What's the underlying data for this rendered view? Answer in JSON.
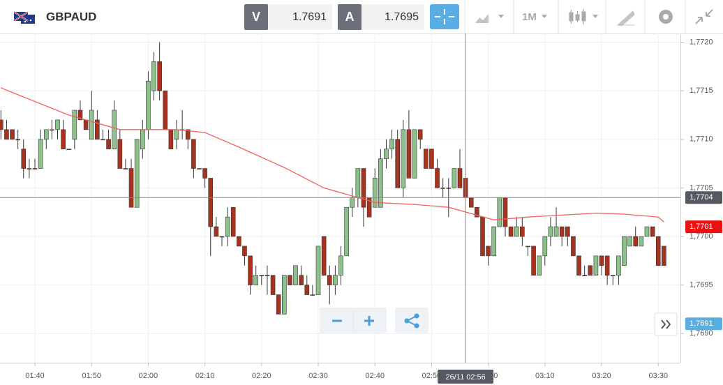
{
  "toolbar": {
    "symbol": "GBPAUD",
    "sell_label": "V",
    "sell_price": "1.7691",
    "buy_label": "A",
    "buy_price": "1.7695",
    "timeframe": "1M"
  },
  "chart_data": {
    "type": "candlestick",
    "x": [
      "01:34",
      "01:35",
      "01:36",
      "01:37",
      "01:38",
      "01:39",
      "01:40",
      "01:41",
      "01:42",
      "01:43",
      "01:44",
      "01:45",
      "01:46",
      "01:47",
      "01:48",
      "01:49",
      "01:50",
      "01:51",
      "01:52",
      "01:53",
      "01:54",
      "01:55",
      "01:56",
      "01:57",
      "01:58",
      "01:59",
      "02:00",
      "02:01",
      "02:02",
      "02:03",
      "02:04",
      "02:05",
      "02:06",
      "02:07",
      "02:08",
      "02:09",
      "02:10",
      "02:11",
      "02:12",
      "02:13",
      "02:14",
      "02:15",
      "02:16",
      "02:17",
      "02:18",
      "02:19",
      "02:20",
      "02:21",
      "02:22",
      "02:23",
      "02:24",
      "02:25",
      "02:26",
      "02:27",
      "02:28",
      "02:29",
      "02:30",
      "02:31",
      "02:32",
      "02:33",
      "02:34",
      "02:35",
      "02:36",
      "02:37",
      "02:38",
      "02:39",
      "02:40",
      "02:41",
      "02:42",
      "02:43",
      "02:44",
      "02:45",
      "02:46",
      "02:47",
      "02:48",
      "02:49",
      "02:50",
      "02:51",
      "02:52",
      "02:53",
      "02:54",
      "02:55",
      "02:56",
      "02:57",
      "02:58",
      "02:59",
      "03:00",
      "03:01",
      "03:02",
      "03:03",
      "03:04",
      "03:05",
      "03:06",
      "03:07",
      "03:08",
      "03:09",
      "03:10",
      "03:11",
      "03:12",
      "03:13",
      "03:14",
      "03:15",
      "03:16",
      "03:17",
      "03:18",
      "03:19",
      "03:20",
      "03:21",
      "03:22",
      "03:23",
      "03:24",
      "03:25",
      "03:26",
      "03:27",
      "03:28",
      "03:29",
      "03:30",
      "03:31"
    ],
    "ohlc": [
      [
        1.7712,
        1.7713,
        1.771,
        1.7711
      ],
      [
        1.7711,
        1.7712,
        1.771,
        1.771
      ],
      [
        1.7711,
        1.7711,
        1.771,
        1.771
      ],
      [
        1.771,
        1.7711,
        1.7709,
        1.771
      ],
      [
        1.7709,
        1.771,
        1.7706,
        1.7707
      ],
      [
        1.7707,
        1.7708,
        1.7706,
        1.7707
      ],
      [
        1.7707,
        1.7708,
        1.7707,
        1.7707
      ],
      [
        1.7707,
        1.7711,
        1.7707,
        1.771
      ],
      [
        1.771,
        1.7711,
        1.7709,
        1.7711
      ],
      [
        1.7711,
        1.7712,
        1.771,
        1.7711
      ],
      [
        1.7711,
        1.7712,
        1.771,
        1.7712
      ],
      [
        1.7711,
        1.7712,
        1.7709,
        1.7709
      ],
      [
        1.7709,
        1.7709,
        1.7709,
        1.7709
      ],
      [
        1.771,
        1.7713,
        1.7709,
        1.7713
      ],
      [
        1.7713,
        1.7714,
        1.7712,
        1.7712
      ],
      [
        1.7712,
        1.7712,
        1.7711,
        1.7711
      ],
      [
        1.771,
        1.7715,
        1.771,
        1.7713
      ],
      [
        1.7712,
        1.7713,
        1.771,
        1.771
      ],
      [
        1.771,
        1.7711,
        1.771,
        1.771
      ],
      [
        1.771,
        1.7711,
        1.7709,
        1.7709
      ],
      [
        1.7709,
        1.7714,
        1.7709,
        1.7713
      ],
      [
        1.771,
        1.7711,
        1.7707,
        1.7707
      ],
      [
        1.7707,
        1.7708,
        1.7707,
        1.7707
      ],
      [
        1.7707,
        1.7708,
        1.7703,
        1.7703
      ],
      [
        1.7703,
        1.771,
        1.7703,
        1.771
      ],
      [
        1.7709,
        1.7712,
        1.7708,
        1.7711
      ],
      [
        1.7711,
        1.7717,
        1.771,
        1.7716
      ],
      [
        1.7715,
        1.7719,
        1.7714,
        1.7718
      ],
      [
        1.7718,
        1.772,
        1.7714,
        1.7715
      ],
      [
        1.7715,
        1.7715,
        1.7711,
        1.7711
      ],
      [
        1.7711,
        1.7711,
        1.7709,
        1.7709
      ],
      [
        1.771,
        1.7712,
        1.7709,
        1.7711
      ],
      [
        1.7711,
        1.7713,
        1.771,
        1.7711
      ],
      [
        1.7711,
        1.7711,
        1.7709,
        1.771
      ],
      [
        1.771,
        1.771,
        1.7706,
        1.7707
      ],
      [
        1.7707,
        1.7707,
        1.7707,
        1.7707
      ],
      [
        1.7707,
        1.7707,
        1.7705,
        1.7706
      ],
      [
        1.7706,
        1.7706,
        1.7698,
        1.7701
      ],
      [
        1.7701,
        1.7702,
        1.77,
        1.77
      ],
      [
        1.77,
        1.77,
        1.7699,
        1.77
      ],
      [
        1.77,
        1.7703,
        1.7699,
        1.7702
      ],
      [
        1.7703,
        1.7703,
        1.77,
        1.77
      ],
      [
        1.77,
        1.77,
        1.7699,
        1.7699
      ],
      [
        1.7699,
        1.7699,
        1.7697,
        1.7698
      ],
      [
        1.7698,
        1.7698,
        1.7694,
        1.7695
      ],
      [
        1.7695,
        1.7697,
        1.7695,
        1.7696
      ],
      [
        1.7696,
        1.7696,
        1.7695,
        1.7696
      ],
      [
        1.7696,
        1.7697,
        1.7694,
        1.7696
      ],
      [
        1.7696,
        1.7696,
        1.7694,
        1.7694
      ],
      [
        1.7694,
        1.7694,
        1.7692,
        1.7692
      ],
      [
        1.7692,
        1.7696,
        1.7692,
        1.7696
      ],
      [
        1.7696,
        1.7696,
        1.7695,
        1.7695
      ],
      [
        1.7695,
        1.7697,
        1.7695,
        1.7697
      ],
      [
        1.7696,
        1.7697,
        1.7695,
        1.7695
      ],
      [
        1.7695,
        1.7696,
        1.7694,
        1.7694
      ],
      [
        1.7694,
        1.7695,
        1.7694,
        1.7694
      ],
      [
        1.7694,
        1.7699,
        1.7694,
        1.7699
      ],
      [
        1.77,
        1.77,
        1.7696,
        1.7696
      ],
      [
        1.7696,
        1.7697,
        1.7693,
        1.7695
      ],
      [
        1.7695,
        1.7697,
        1.7694,
        1.7696
      ],
      [
        1.7696,
        1.7699,
        1.7695,
        1.7698
      ],
      [
        1.7698,
        1.7703,
        1.7698,
        1.7703
      ],
      [
        1.7703,
        1.7705,
        1.7702,
        1.7704
      ],
      [
        1.7704,
        1.7707,
        1.7703,
        1.7707
      ],
      [
        1.7707,
        1.7707,
        1.7701,
        1.7703
      ],
      [
        1.7704,
        1.7704,
        1.7702,
        1.7702
      ],
      [
        1.7703,
        1.7707,
        1.7703,
        1.7706
      ],
      [
        1.7703,
        1.7709,
        1.7703,
        1.7708
      ],
      [
        1.7708,
        1.771,
        1.7707,
        1.7709
      ],
      [
        1.7709,
        1.7711,
        1.7708,
        1.771
      ],
      [
        1.771,
        1.7711,
        1.7705,
        1.7705
      ],
      [
        1.7705,
        1.7712,
        1.7704,
        1.7711
      ],
      [
        1.7711,
        1.7713,
        1.7706,
        1.7706
      ],
      [
        1.7706,
        1.7711,
        1.7706,
        1.7711
      ],
      [
        1.7711,
        1.7711,
        1.7709,
        1.771
      ],
      [
        1.7709,
        1.7709,
        1.7707,
        1.7707
      ],
      [
        1.7709,
        1.7709,
        1.7707,
        1.7707
      ],
      [
        1.7707,
        1.7708,
        1.7705,
        1.7705
      ],
      [
        1.7705,
        1.7706,
        1.7704,
        1.7705
      ],
      [
        1.7705,
        1.7706,
        1.7702,
        1.7705
      ],
      [
        1.7705,
        1.7707,
        1.7705,
        1.7707
      ],
      [
        1.7707,
        1.7709,
        1.7705,
        1.7705
      ],
      [
        1.7706,
        1.7706,
        1.7704,
        1.7704
      ],
      [
        1.7704,
        1.7704,
        1.7703,
        1.7703
      ],
      [
        1.7703,
        1.7703,
        1.7702,
        1.7702
      ],
      [
        1.7702,
        1.7702,
        1.7698,
        1.7698
      ],
      [
        1.7699,
        1.7699,
        1.7697,
        1.7698
      ],
      [
        1.7698,
        1.7701,
        1.7698,
        1.7701
      ],
      [
        1.7701,
        1.7704,
        1.7701,
        1.7704
      ],
      [
        1.7704,
        1.7704,
        1.77,
        1.7701
      ],
      [
        1.7701,
        1.7701,
        1.77,
        1.77
      ],
      [
        1.77,
        1.7702,
        1.77,
        1.7701
      ],
      [
        1.7701,
        1.7702,
        1.7699,
        1.77
      ],
      [
        1.7699,
        1.7699,
        1.7698,
        1.7699
      ],
      [
        1.7699,
        1.7699,
        1.7696,
        1.7696
      ],
      [
        1.7696,
        1.7698,
        1.7696,
        1.7698
      ],
      [
        1.7698,
        1.77,
        1.7697,
        1.77
      ],
      [
        1.77,
        1.7702,
        1.7699,
        1.7701
      ],
      [
        1.77,
        1.7703,
        1.77,
        1.7701
      ],
      [
        1.7701,
        1.7701,
        1.7699,
        1.77
      ],
      [
        1.7701,
        1.7701,
        1.7699,
        1.77
      ],
      [
        1.77,
        1.77,
        1.7698,
        1.7698
      ],
      [
        1.7698,
        1.7698,
        1.7696,
        1.7696
      ],
      [
        1.7696,
        1.7697,
        1.7696,
        1.7696
      ],
      [
        1.7697,
        1.7697,
        1.7696,
        1.7696
      ],
      [
        1.7696,
        1.7698,
        1.7696,
        1.7698
      ],
      [
        1.7698,
        1.7698,
        1.7696,
        1.7697
      ],
      [
        1.7698,
        1.7698,
        1.7695,
        1.7696
      ],
      [
        1.7696,
        1.7696,
        1.7695,
        1.7696
      ],
      [
        1.7696,
        1.7698,
        1.7695,
        1.7698
      ],
      [
        1.7697,
        1.77,
        1.7697,
        1.77
      ],
      [
        1.7699,
        1.77,
        1.7699,
        1.77
      ],
      [
        1.77,
        1.7701,
        1.7699,
        1.7699
      ],
      [
        1.7699,
        1.77,
        1.7699,
        1.77
      ],
      [
        1.77,
        1.7701,
        1.77,
        1.7701
      ],
      [
        1.7701,
        1.7701,
        1.77,
        1.77
      ],
      [
        1.77,
        1.77,
        1.7697,
        1.7697
      ],
      [
        1.7699,
        1.7699,
        1.7697,
        1.7697
      ]
    ],
    "up_color": "#8cc28a",
    "down_color": "#a8321e",
    "ma": {
      "color": "#f0625a",
      "x": [
        "01:34",
        "01:46",
        "01:55",
        "02:05",
        "02:10",
        "02:16",
        "02:24",
        "02:31",
        "02:40",
        "02:47",
        "02:53",
        "03:01",
        "03:07",
        "03:19",
        "03:24",
        "03:30",
        "03:31"
      ],
      "values": [
        1.77153,
        1.77125,
        1.7711,
        1.7711,
        1.77107,
        1.77092,
        1.77071,
        1.7705,
        1.77035,
        1.77033,
        1.7703,
        1.77017,
        1.7702,
        1.77024,
        1.77023,
        1.7702,
        1.77015
      ]
    },
    "ylim": [
      1.7687,
      1.77209
    ],
    "yticks": [
      {
        "value": 1.769,
        "label": "1,7690"
      },
      {
        "value": 1.7695,
        "label": "1,7695"
      },
      {
        "value": 1.77,
        "label": "1,7700"
      },
      {
        "value": 1.7705,
        "label": "1,7705"
      },
      {
        "value": 1.771,
        "label": "1,7710"
      },
      {
        "value": 1.7715,
        "label": "1,7715"
      },
      {
        "value": 1.772,
        "label": "1,7720"
      }
    ],
    "xticks": [
      "01:40",
      "01:50",
      "02:00",
      "02:10",
      "02:20",
      "02:30",
      "02:40",
      "02:50",
      "03:00",
      "03:10",
      "03:20",
      "03:30"
    ],
    "grid": true,
    "price_markers": [
      {
        "value": 1.7701,
        "label": "1,7701",
        "color": "#ee1111"
      },
      {
        "value": 1.7691,
        "label": "1,7691",
        "color": "#5aaee0"
      }
    ],
    "crosshair": {
      "x": "02:56",
      "label": "26/11 02:56",
      "y": {
        "value": 1.7704,
        "label": "1,7704"
      },
      "color": "#555a62"
    }
  }
}
